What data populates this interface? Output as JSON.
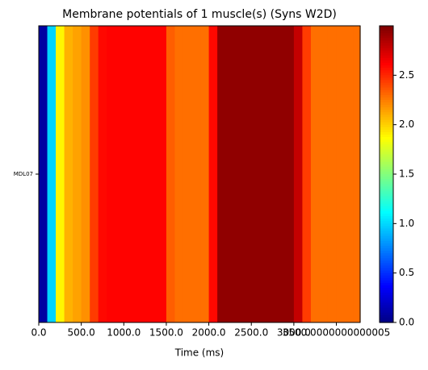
{
  "chart_data": {
    "type": "heatmap",
    "title": "Membrane potentials of 1 muscle(s) (Syns W2D)",
    "xlabel": "Time (ms)",
    "categories": [
      "MDL07"
    ],
    "x": [
      0,
      100,
      200,
      300,
      400,
      500,
      600,
      700,
      800,
      900,
      1000,
      1100,
      1200,
      1300,
      1400,
      1500,
      1600,
      1700,
      1800,
      1900,
      2000,
      2100,
      2200,
      2300,
      2400,
      2500,
      2600,
      2700,
      2800,
      2900,
      3000,
      3100,
      3200,
      3300,
      3400,
      3500,
      3600,
      3700
    ],
    "values": [
      [
        0.1,
        1.0,
        1.9,
        2.1,
        2.15,
        2.2,
        2.45,
        2.6,
        2.62,
        2.62,
        2.62,
        2.62,
        2.62,
        2.62,
        2.62,
        2.35,
        2.3,
        2.3,
        2.3,
        2.3,
        2.6,
        2.95,
        2.95,
        2.95,
        2.95,
        2.95,
        2.95,
        2.95,
        2.95,
        2.95,
        2.8,
        2.45,
        2.3,
        2.3,
        2.3,
        2.3,
        2.3,
        2.3
      ]
    ],
    "xlim": [
      0,
      3780
    ],
    "xticks": [
      {
        "value": 0,
        "label": "0.0"
      },
      {
        "value": 500,
        "label": "500.0"
      },
      {
        "value": 1000,
        "label": "1000.0"
      },
      {
        "value": 1500,
        "label": "1500.0"
      },
      {
        "value": 2000,
        "label": "2000.0"
      },
      {
        "value": 2500,
        "label": "2500.0"
      },
      {
        "value": 3000,
        "label": "3000.0"
      },
      {
        "value": 3500.0000000000005,
        "label": "3500.0000000000005"
      }
    ],
    "colormap": "jet",
    "clim": [
      0,
      3.0
    ],
    "cticks": [
      {
        "value": 0,
        "label": "0.0"
      },
      {
        "value": 0.5,
        "label": "0.5"
      },
      {
        "value": 1,
        "label": "1.0"
      },
      {
        "value": 1.5,
        "label": "1.5"
      },
      {
        "value": 2,
        "label": "2.0"
      },
      {
        "value": 2.5,
        "label": "2.5"
      }
    ]
  }
}
